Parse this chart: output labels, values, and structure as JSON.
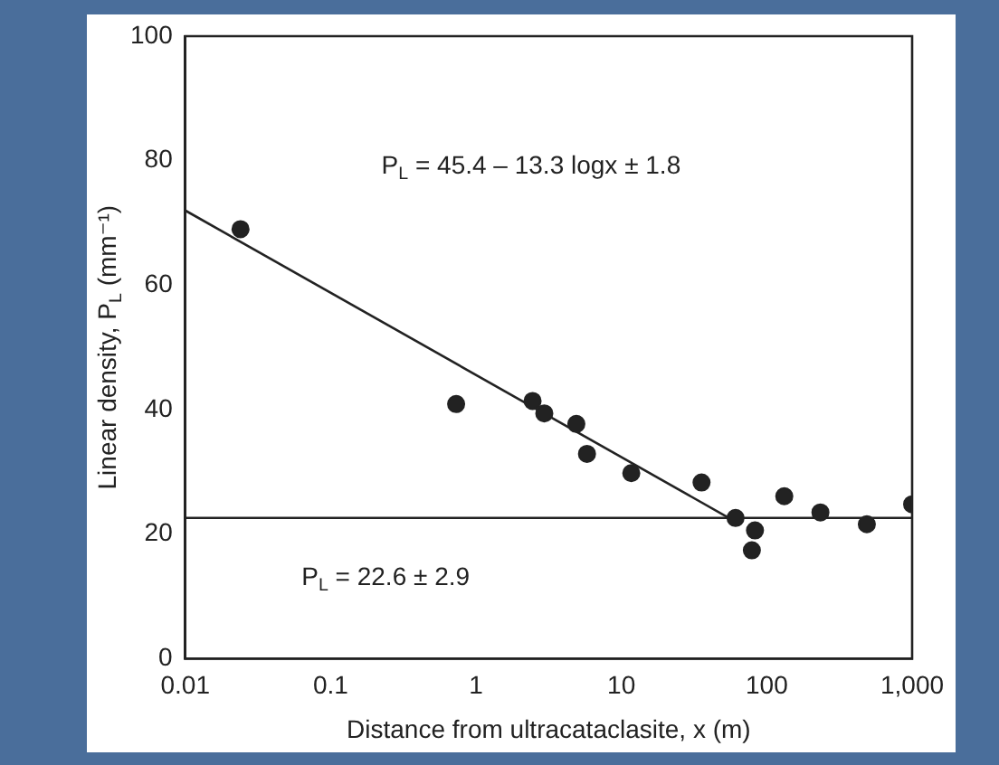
{
  "chart_data": {
    "type": "scatter",
    "xlabel": "Distance from ultracataclasite, x (m)",
    "ylabel": "Linear density, P$_{L}$ (mm⁻¹)",
    "log": "x",
    "xlim": [
      0.01,
      1000
    ],
    "xticks": [
      0.01,
      0.1,
      1,
      10,
      100,
      {
        "value": 1000,
        "label": "1,000"
      }
    ],
    "ylim": [
      0,
      100
    ],
    "yticks": [
      0,
      20,
      40,
      60,
      80,
      100
    ],
    "grid": false,
    "legend": false,
    "marker": "circle",
    "series": [
      {
        "color": "#222222",
        "x": [
          0.024,
          0.73,
          2.45,
          2.95,
          4.9,
          5.8,
          11.7,
          35.6,
          61,
          83,
          79,
          132,
          234,
          488,
          1000
        ],
        "values": [
          69,
          40.9,
          41.4,
          39.4,
          37.7,
          32.9,
          29.8,
          28.3,
          22.6,
          20.6,
          17.4,
          26.1,
          23.5,
          21.6,
          24.8
        ]
      },
      {
        "type": "line",
        "color": "#222222",
        "marker": "none",
        "x": [
          0.01,
          55
        ],
        "values": [
          72,
          22.6
        ]
      }
    ],
    "ref_lines": [
      {
        "axis": "y",
        "value": 22.6,
        "color": "#222222"
      }
    ],
    "annotations": [
      "P$_{L}$ = 45.4 – 13.3 logx ± 1.8",
      "P$_{L}$ = 22.6 ± 2.9"
    ]
  }
}
